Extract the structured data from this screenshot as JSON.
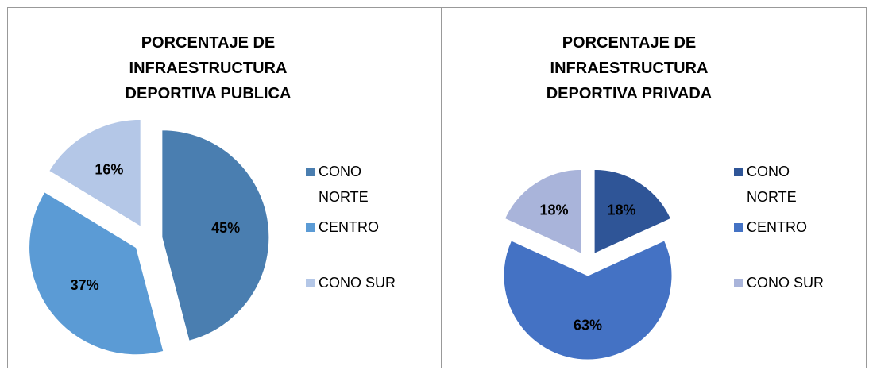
{
  "chart_data": [
    {
      "type": "pie",
      "title": "PORCENTAJE DE INFRAESTRUCTURA DEPORTIVA PUBLICA",
      "categories": [
        "CONO NORTE",
        "CENTRO",
        "CONO SUR"
      ],
      "values": [
        45,
        37,
        16
      ],
      "value_labels": [
        "45%",
        "37%",
        "16%"
      ],
      "colors": [
        "#4a7eb0",
        "#5b9bd5",
        "#b4c7e7"
      ],
      "legend": "right"
    },
    {
      "type": "pie",
      "title": "PORCENTAJE DE INFRAESTRUCTURA DEPORTIVA PRIVADA",
      "categories": [
        "CONO NORTE",
        "CENTRO",
        "CONO SUR"
      ],
      "values": [
        18,
        63,
        18
      ],
      "value_labels": [
        "18%",
        "63%",
        "18%"
      ],
      "colors": [
        "#2f5597",
        "#4472c4",
        "#a9b4da"
      ],
      "legend": "right"
    }
  ]
}
